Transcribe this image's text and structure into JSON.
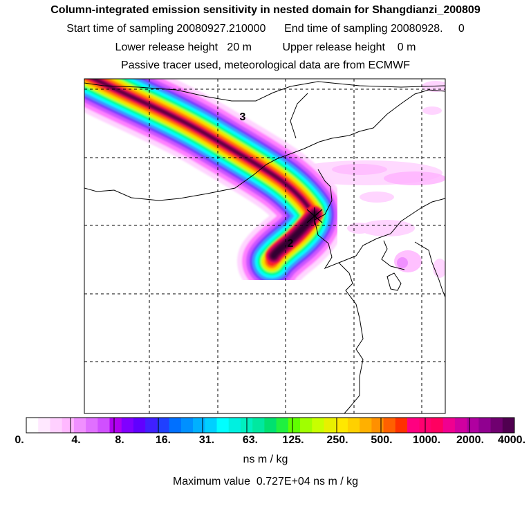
{
  "header": {
    "title": "Column-integrated emission sensitivity in nested domain for Shangdianzi_200809",
    "sampling_line": "Start time of sampling 20080927.210000      End time of sampling 20080928.     0",
    "release_line": "Lower release height   20 m          Upper release height    0 m",
    "tracer_line": "Passive tracer used, meteorological data are from ECMWF"
  },
  "map": {
    "markers": [
      "3",
      "2"
    ],
    "plume_colors": [
      "#ffd5ff",
      "#ff80ff",
      "#cc55ff",
      "#7040ff",
      "#30a0ff",
      "#00ffff",
      "#00ff80",
      "#c8ff00",
      "#ffd700",
      "#ff8000",
      "#ff2020",
      "#c00060",
      "#600040"
    ]
  },
  "colorbar": {
    "tick_labels": [
      "0.",
      "4.",
      "8.",
      "16.",
      "31.",
      "63.",
      "125.",
      "250.",
      "500.",
      "1000.",
      "2000.",
      "4000."
    ],
    "colors": [
      "#ffffff",
      "#ffe8ff",
      "#ffd0ff",
      "#ffb8ff",
      "#f090ff",
      "#e070ff",
      "#d050ff",
      "#b000f0",
      "#8000ff",
      "#6000ff",
      "#4020ff",
      "#2040ff",
      "#0070ff",
      "#0090ff",
      "#00b0ff",
      "#00d0ff",
      "#00ffff",
      "#00f0e0",
      "#00f0c0",
      "#00e8a0",
      "#00e070",
      "#20f040",
      "#60ff00",
      "#a0ff00",
      "#c8ff00",
      "#e8f000",
      "#ffe800",
      "#ffd000",
      "#ffb000",
      "#ff9000",
      "#ff6000",
      "#ff3000",
      "#ff0080",
      "#ff0070",
      "#ff0060",
      "#f00090",
      "#d000a0",
      "#b000a0",
      "#900090",
      "#700070",
      "#500050"
    ],
    "units": "ns m / kg",
    "max_value_text": "Maximum value  0.727E+04 ns m / kg"
  }
}
